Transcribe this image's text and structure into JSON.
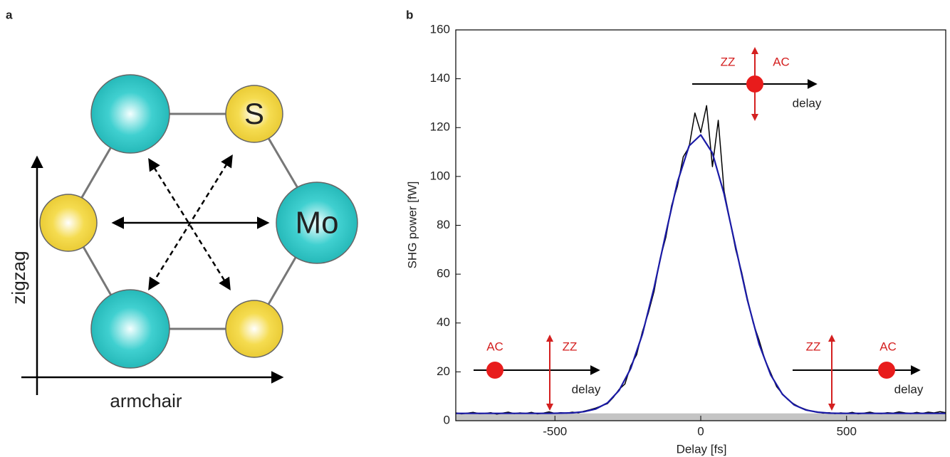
{
  "panel_a": {
    "label": "a",
    "atom_small": "S",
    "atom_large": "Mo",
    "vertical_axis": "zigzag",
    "horizontal_axis": "armchair"
  },
  "chart_data": {
    "type": "line",
    "panel_label": "b",
    "x_label": "Delay [fs]",
    "y_label": "SHG power [fW]",
    "xlim": [
      -840,
      840
    ],
    "ylim": [
      0,
      160
    ],
    "xticks": [
      -500,
      0,
      500
    ],
    "yticks": [
      0,
      20,
      40,
      60,
      80,
      100,
      120,
      140,
      160
    ],
    "shaded_band": [
      0,
      3
    ],
    "shaded_color": "#c4c4c4",
    "series": [
      {
        "color": "#000000",
        "x": [
          -840,
          -820,
          -800,
          -780,
          -760,
          -740,
          -720,
          -700,
          -680,
          -660,
          -640,
          -620,
          -600,
          -580,
          -560,
          -540,
          -520,
          -500,
          -480,
          -460,
          -440,
          -420,
          -400,
          -380,
          -360,
          -340,
          -320,
          -300,
          -280,
          -260,
          -240,
          -220,
          -200,
          -180,
          -160,
          -140,
          -120,
          -100,
          -80,
          -60,
          -40,
          -20,
          0,
          20,
          40,
          60,
          80,
          100,
          120,
          140,
          160,
          180,
          200,
          220,
          240,
          260,
          280,
          300,
          320,
          340,
          360,
          380,
          400,
          420,
          440,
          460,
          480,
          500,
          520,
          540,
          560,
          580,
          600,
          620,
          640,
          660,
          680,
          700,
          720,
          740,
          760,
          780,
          800,
          820,
          840
        ],
        "values": [
          3.2,
          2.8,
          3.1,
          3.4,
          2.9,
          3.0,
          3.3,
          2.7,
          3.1,
          3.5,
          2.9,
          3.2,
          3.0,
          3.4,
          2.8,
          3.1,
          3.6,
          3.0,
          3.3,
          3.1,
          3.5,
          3.2,
          3.9,
          4.5,
          5.2,
          6.1,
          7.0,
          9.5,
          12.8,
          15.0,
          22.5,
          27.0,
          36.5,
          44.0,
          53.0,
          66.0,
          75.0,
          88.0,
          96.0,
          108.0,
          112.0,
          126.0,
          118.0,
          129.0,
          104.0,
          123.0,
          94.0,
          82.0,
          70.0,
          61.0,
          50.0,
          40.0,
          33.0,
          25.0,
          19.5,
          14.0,
          11.0,
          8.5,
          6.8,
          5.5,
          4.6,
          3.9,
          3.6,
          3.1,
          3.3,
          2.9,
          3.2,
          3.0,
          3.4,
          2.8,
          3.1,
          3.5,
          3.0,
          2.9,
          3.3,
          3.1,
          3.6,
          3.2,
          2.9,
          3.4,
          3.0,
          3.5,
          3.2,
          3.7,
          3.3
        ]
      },
      {
        "color": "#1a1aa6",
        "x": [
          -840,
          -800,
          -760,
          -720,
          -680,
          -640,
          -600,
          -560,
          -520,
          -480,
          -440,
          -400,
          -360,
          -320,
          -280,
          -240,
          -200,
          -160,
          -120,
          -80,
          -40,
          0,
          40,
          80,
          120,
          160,
          200,
          240,
          280,
          320,
          360,
          400,
          440,
          480,
          520,
          560,
          600,
          640,
          680,
          720,
          760,
          800,
          840
        ],
        "values": [
          3.0,
          3.0,
          3.0,
          3.0,
          3.0,
          3.0,
          3.0,
          3.0,
          3.0,
          3.1,
          3.2,
          3.7,
          4.8,
          7.3,
          12.4,
          21.4,
          35.4,
          54.5,
          76.6,
          97.6,
          112.5,
          117.0,
          109.6,
          92.8,
          71.0,
          49.4,
          31.4,
          18.7,
          10.8,
          6.5,
          4.4,
          3.5,
          3.1,
          3.0,
          3.0,
          3.0,
          3.0,
          3.0,
          3.0,
          3.0,
          3.0,
          3.0,
          3.0
        ]
      }
    ],
    "insets": [
      {
        "ac": "AC",
        "zz": "ZZ",
        "axis": "delay"
      },
      {
        "ac": "AC",
        "zz": "ZZ",
        "axis": "delay"
      },
      {
        "ac": "AC",
        "zz": "ZZ",
        "axis": "delay"
      }
    ]
  }
}
